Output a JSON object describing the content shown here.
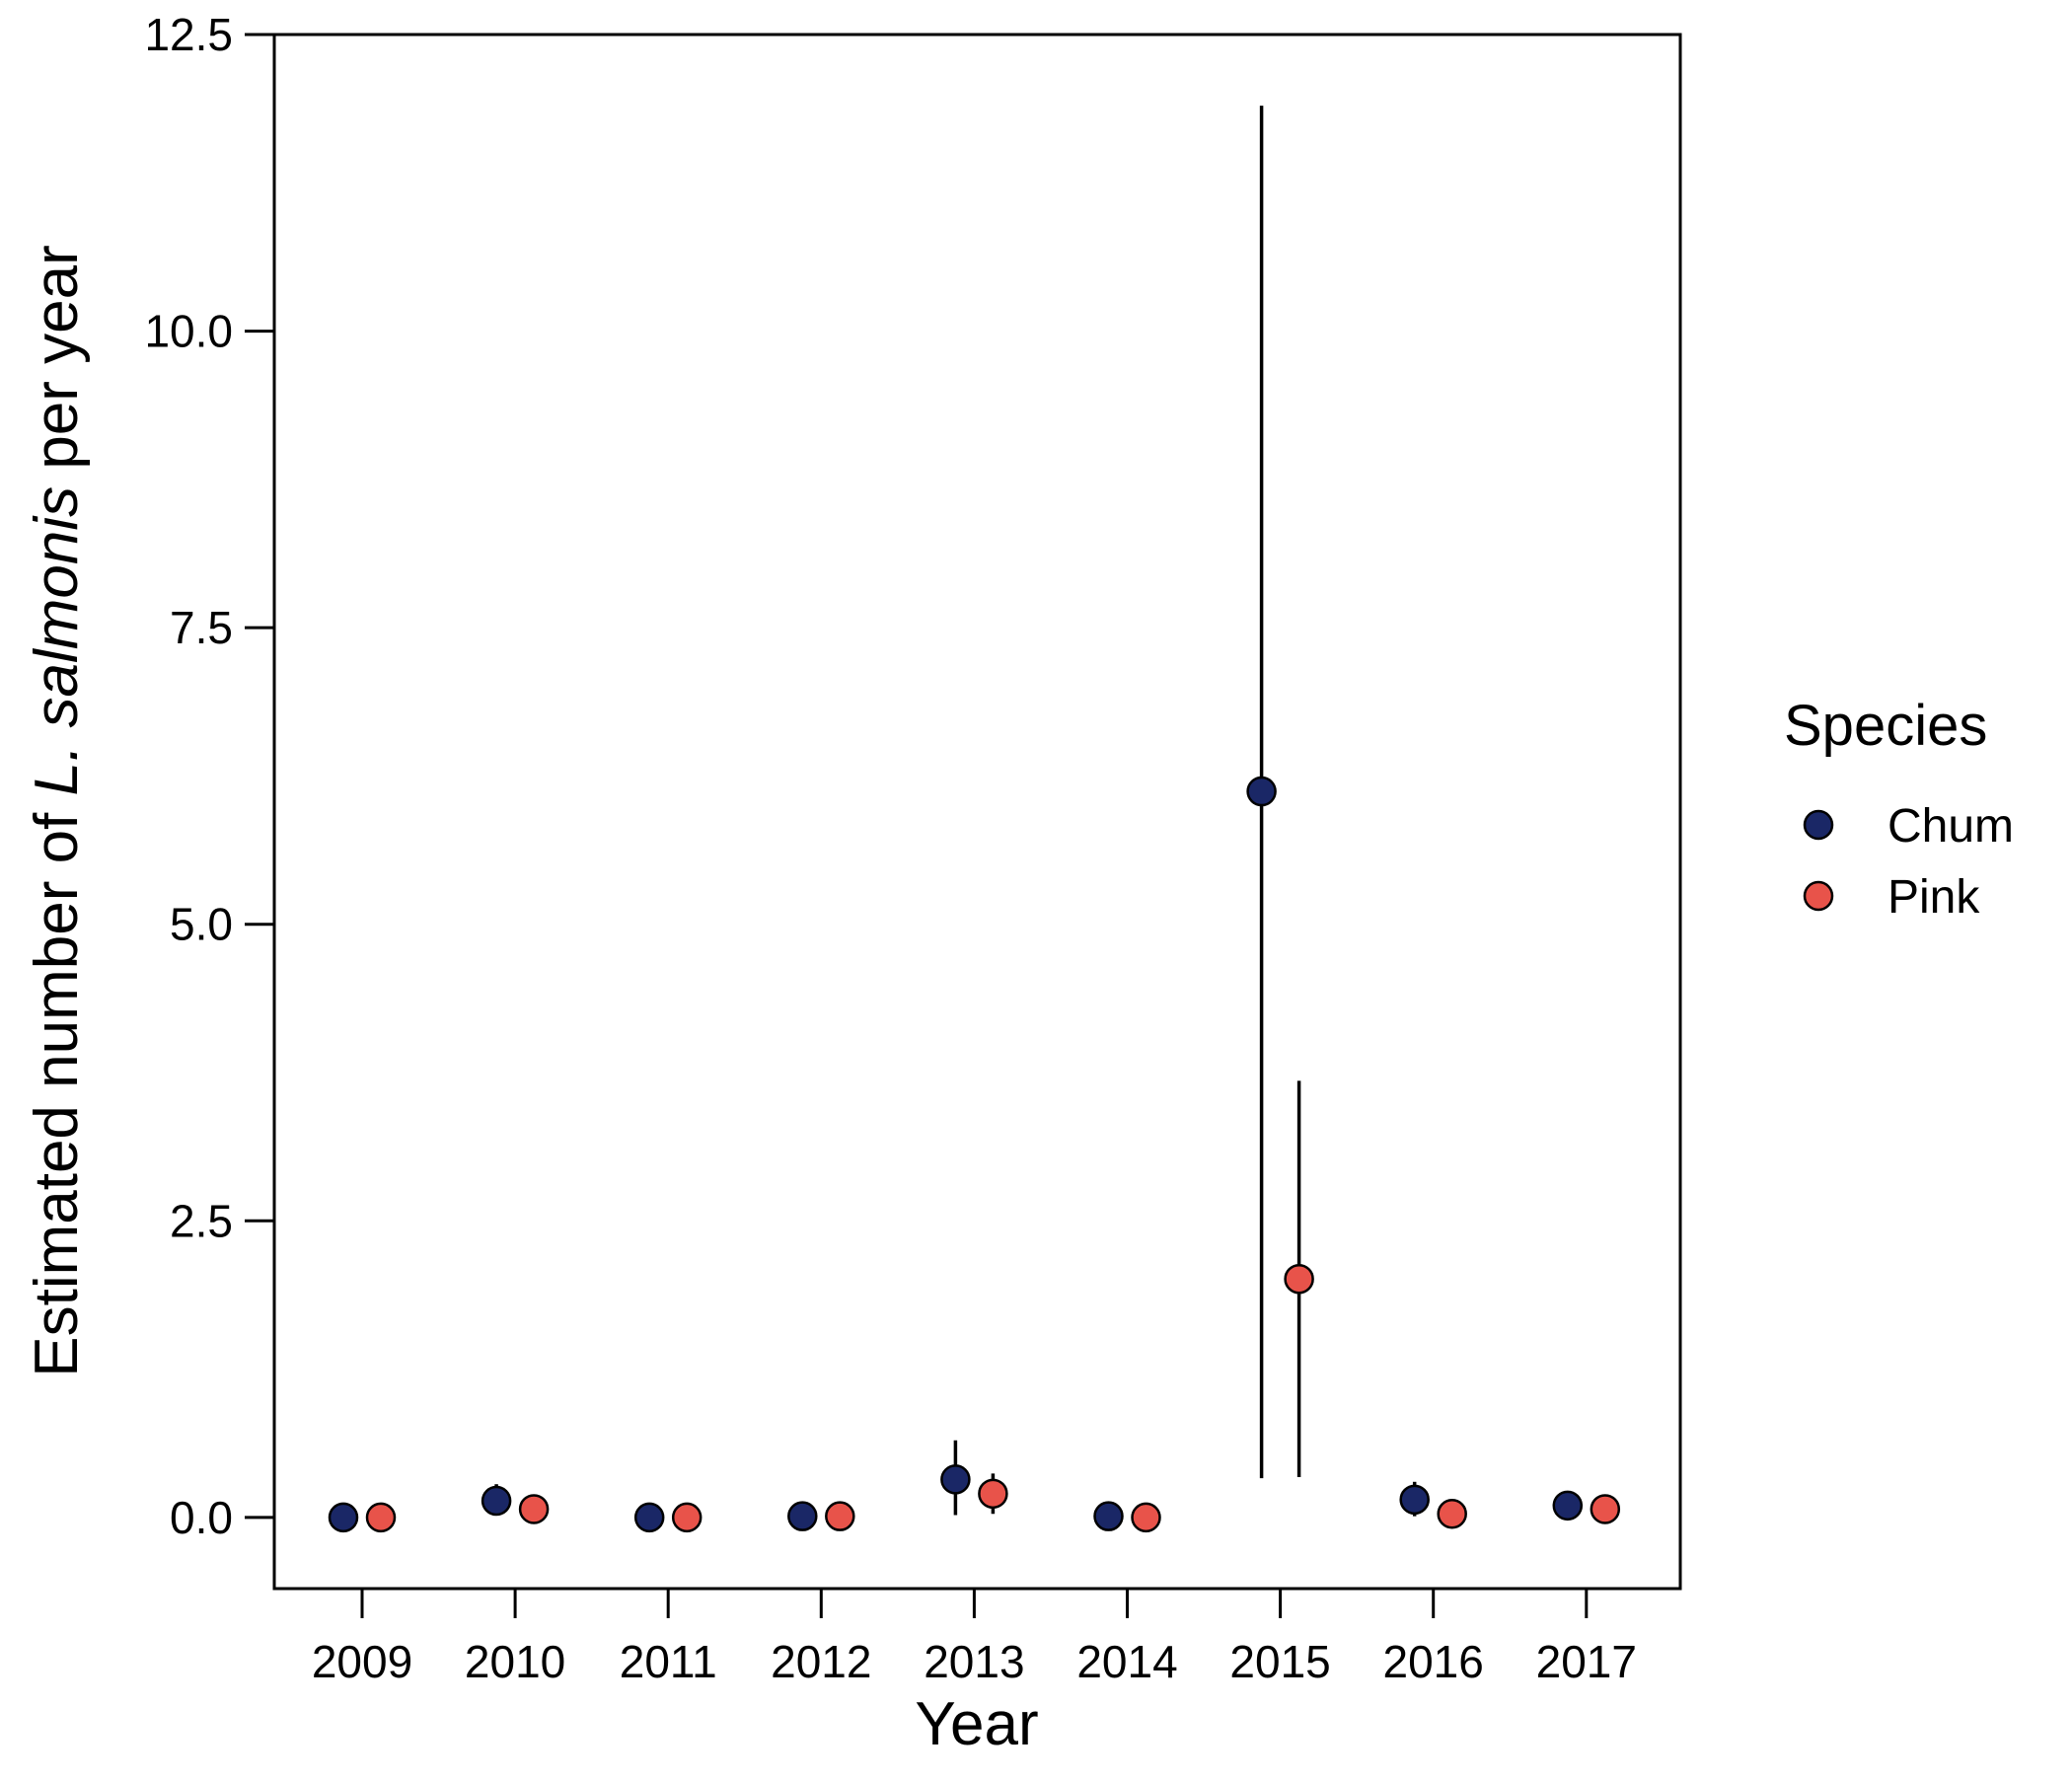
{
  "chart_data": {
    "type": "scatter",
    "x_axis": {
      "label": "Year",
      "categories": [
        "2009",
        "2010",
        "2011",
        "2012",
        "2013",
        "2014",
        "2015",
        "2016",
        "2017"
      ]
    },
    "y_axis": {
      "label_parts": [
        "Estimated number of ",
        "L. salmonis",
        " per year"
      ],
      "ylim": [
        -0.6,
        12.5
      ],
      "ticks": [
        "0.0",
        "2.5",
        "5.0",
        "7.5",
        "10.0",
        "12.5"
      ],
      "tick_values": [
        0,
        2.5,
        5,
        7.5,
        10,
        12.5
      ]
    },
    "legend": {
      "title": "Species",
      "position": "right"
    },
    "grid": false,
    "series": [
      {
        "name": "Chum",
        "color": "#1a2766",
        "values": [
          0.0,
          0.14,
          0.0,
          0.01,
          0.32,
          0.01,
          6.12,
          0.15,
          0.1
        ],
        "lower": [
          0.0,
          0.02,
          0.0,
          0.0,
          0.02,
          0.0,
          0.33,
          0.01,
          0.05
        ],
        "upper": [
          0.0,
          0.28,
          0.0,
          0.02,
          0.65,
          0.02,
          11.9,
          0.3,
          0.15
        ]
      },
      {
        "name": "Pink",
        "color": "#e8534a",
        "values": [
          0.0,
          0.07,
          0.0,
          0.01,
          0.2,
          0.0,
          2.01,
          0.03,
          0.07
        ],
        "lower": [
          0.0,
          0.03,
          0.0,
          0.0,
          0.03,
          0.0,
          0.34,
          0.01,
          0.04
        ],
        "upper": [
          0.0,
          0.11,
          0.0,
          0.02,
          0.37,
          0.01,
          3.68,
          0.05,
          0.1
        ]
      }
    ]
  }
}
